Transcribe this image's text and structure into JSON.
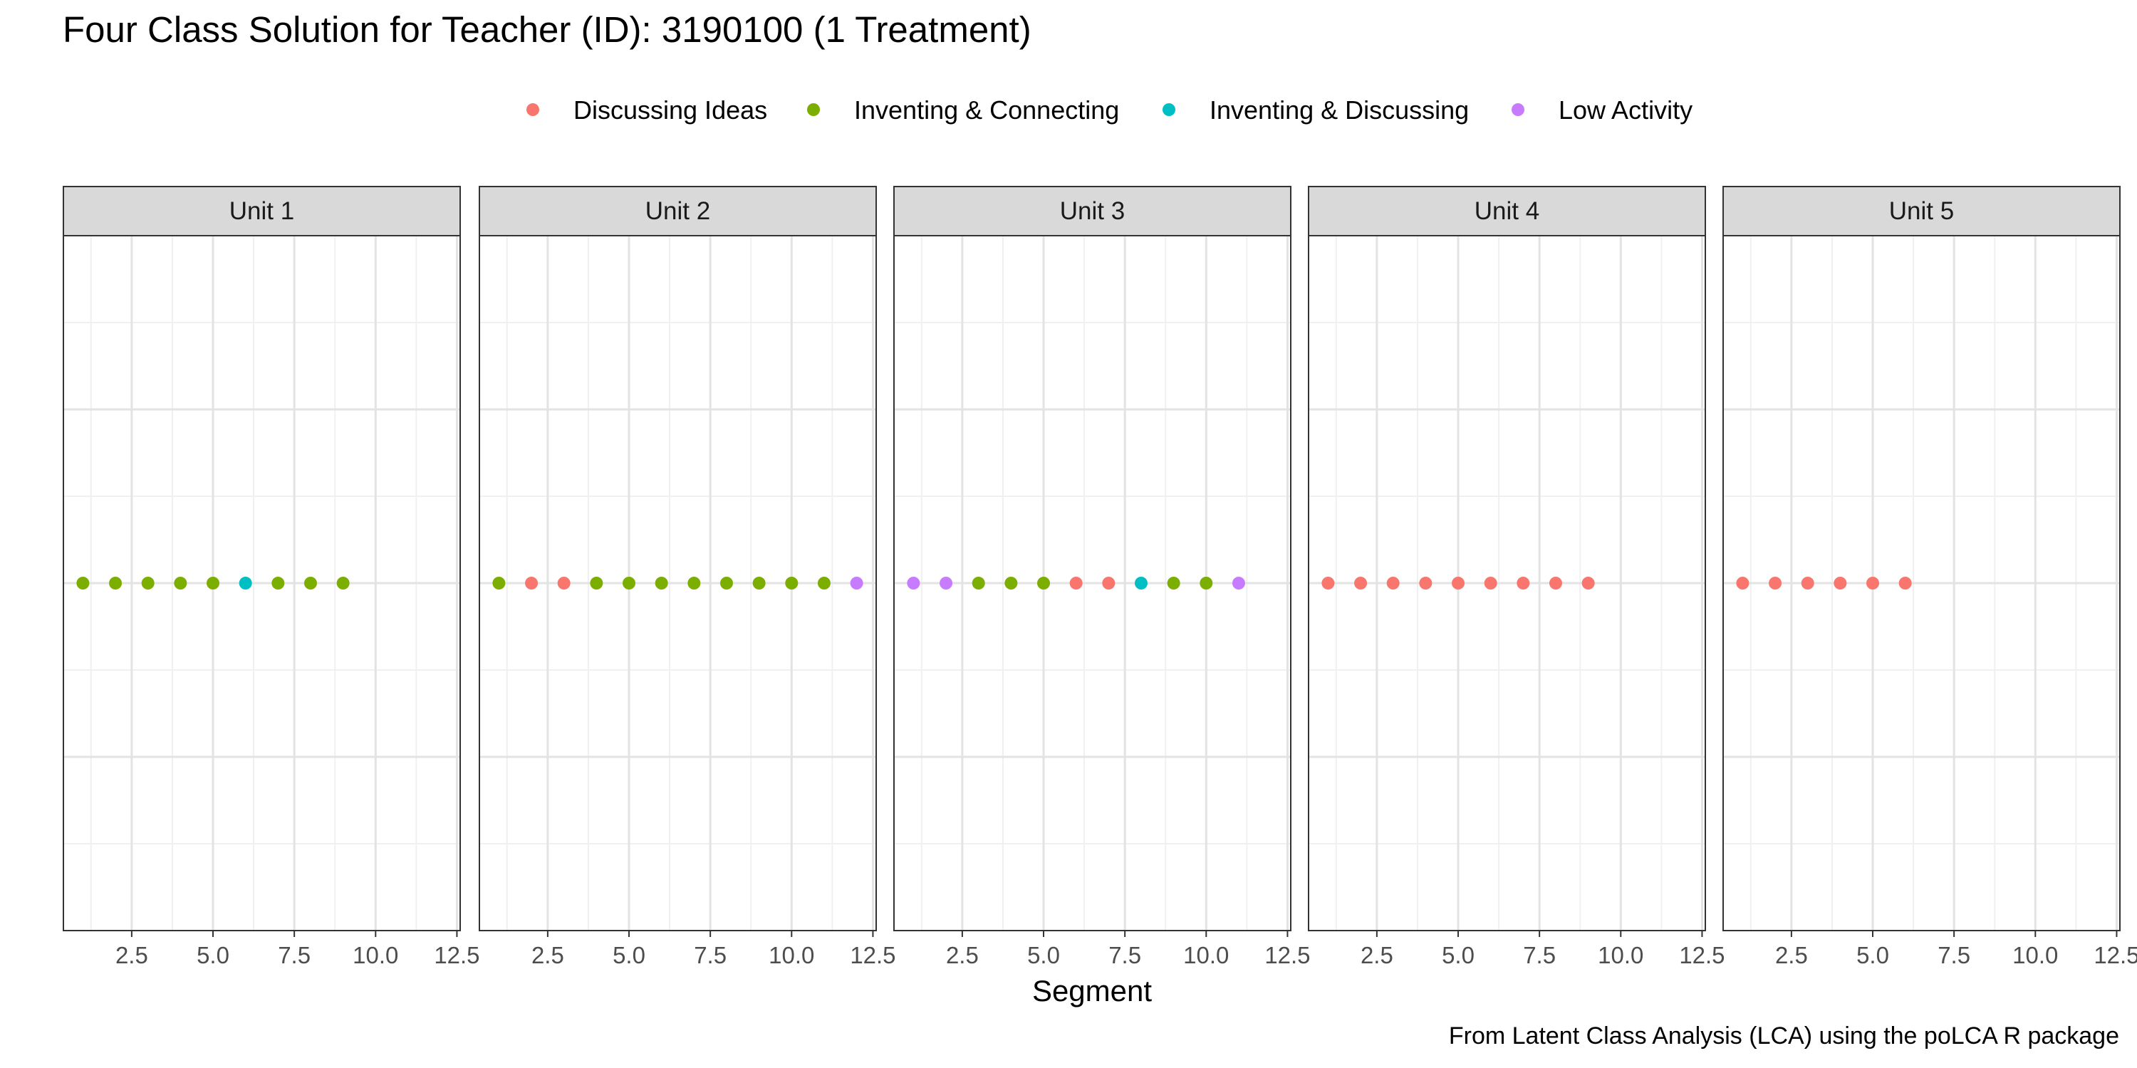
{
  "chart_data": {
    "type": "scatter",
    "title": "Four Class Solution for Teacher (ID): 3190100 (1 Treatment)",
    "xlabel": "Segment",
    "ylabel": "",
    "caption": "From Latent Class Analysis (LCA) using the poLCA R package",
    "xlim": [
      0.4,
      12.6
    ],
    "x_ticks": [
      2.5,
      5.0,
      7.5,
      10.0,
      12.5
    ],
    "x_tick_labels": [
      "2.5",
      "5.0",
      "7.5",
      "10.0",
      "12.5"
    ],
    "grid": true,
    "legend_position": "top",
    "classes": [
      {
        "name": "Discussing Ideas",
        "color": "#F8766D"
      },
      {
        "name": "Inventing & Connecting",
        "color": "#7CAE00"
      },
      {
        "name": "Inventing & Discussing",
        "color": "#00BFC4"
      },
      {
        "name": "Low Activity",
        "color": "#C77CFF"
      }
    ],
    "panels": [
      {
        "label": "Unit 1",
        "segments": [
          1,
          2,
          3,
          4,
          5,
          6,
          7,
          8,
          9
        ],
        "classes": [
          "Inventing & Connecting",
          "Inventing & Connecting",
          "Inventing & Connecting",
          "Inventing & Connecting",
          "Inventing & Connecting",
          "Inventing & Discussing",
          "Inventing & Connecting",
          "Inventing & Connecting",
          "Inventing & Connecting"
        ]
      },
      {
        "label": "Unit 2",
        "segments": [
          1,
          2,
          3,
          4,
          5,
          6,
          7,
          8,
          9,
          10,
          11,
          12
        ],
        "classes": [
          "Inventing & Connecting",
          "Discussing Ideas",
          "Discussing Ideas",
          "Inventing & Connecting",
          "Inventing & Connecting",
          "Inventing & Connecting",
          "Inventing & Connecting",
          "Inventing & Connecting",
          "Inventing & Connecting",
          "Inventing & Connecting",
          "Inventing & Connecting",
          "Low Activity"
        ]
      },
      {
        "label": "Unit 3",
        "segments": [
          1,
          2,
          3,
          4,
          5,
          6,
          7,
          8,
          9,
          10,
          11
        ],
        "classes": [
          "Low Activity",
          "Low Activity",
          "Inventing & Connecting",
          "Inventing & Connecting",
          "Inventing & Connecting",
          "Discussing Ideas",
          "Discussing Ideas",
          "Inventing & Discussing",
          "Inventing & Connecting",
          "Inventing & Connecting",
          "Low Activity"
        ]
      },
      {
        "label": "Unit 4",
        "segments": [
          1,
          2,
          3,
          4,
          5,
          6,
          7,
          8,
          9
        ],
        "classes": [
          "Discussing Ideas",
          "Discussing Ideas",
          "Discussing Ideas",
          "Discussing Ideas",
          "Discussing Ideas",
          "Discussing Ideas",
          "Discussing Ideas",
          "Discussing Ideas",
          "Discussing Ideas"
        ]
      },
      {
        "label": "Unit 5",
        "segments": [
          1,
          2,
          3,
          4,
          5,
          6
        ],
        "classes": [
          "Discussing Ideas",
          "Discussing Ideas",
          "Discussing Ideas",
          "Discussing Ideas",
          "Discussing Ideas",
          "Discussing Ideas"
        ]
      }
    ]
  }
}
